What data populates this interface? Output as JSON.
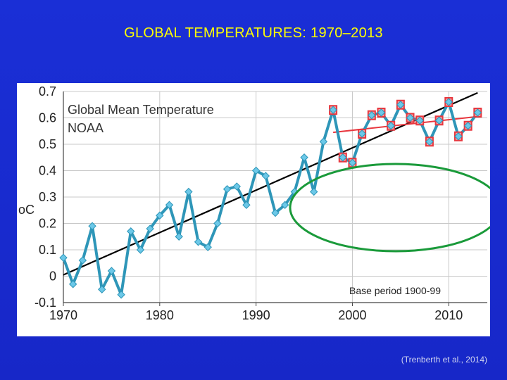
{
  "slide": {
    "title": "GLOBAL TEMPERATURES:  1970–2013",
    "citation": "(Trenberth et al., 2014)"
  },
  "chart_data": {
    "type": "line",
    "title": "Global Mean Temperature",
    "subtitle": "NOAA",
    "ylabel": "oC",
    "annotation": "Base period 1900-99",
    "xlim": [
      1970,
      2014
    ],
    "ylim": [
      -0.1,
      0.7
    ],
    "x_ticks": [
      "1970",
      "1980",
      "1990",
      "2000",
      "2010"
    ],
    "y_ticks": [
      "0.7",
      "0.6",
      "0.5",
      "0.4",
      "0.3",
      "0.2",
      "0.1",
      "0",
      "-0.1"
    ],
    "grid": true,
    "colors": {
      "series": "#2e96b8",
      "marker": "#6cc8e8",
      "trend_long": "#000000",
      "trend_recent": "#e8373e",
      "highlight_box": "#e8373e",
      "ellipse": "#1a9a3a"
    },
    "series": [
      {
        "name": "",
        "x": [
          1970,
          1971,
          1972,
          1973,
          1974,
          1975,
          1976,
          1977,
          1978,
          1979,
          1980,
          1981,
          1982,
          1983,
          1984,
          1985,
          1986,
          1987,
          1988,
          1989,
          1990,
          1991,
          1992,
          1993,
          1994,
          1995,
          1996,
          1997,
          1998,
          1999,
          2000,
          2001,
          2002,
          2003,
          2004,
          2005,
          2006,
          2007,
          2008,
          2009,
          2010,
          2011,
          2012,
          2013
        ],
        "values": [
          0.07,
          -0.03,
          0.06,
          0.19,
          -0.05,
          0.02,
          -0.07,
          0.17,
          0.1,
          0.18,
          0.23,
          0.27,
          0.15,
          0.32,
          0.13,
          0.11,
          0.2,
          0.33,
          0.34,
          0.27,
          0.4,
          0.38,
          0.24,
          0.27,
          0.32,
          0.45,
          0.32,
          0.51,
          0.63,
          0.45,
          0.43,
          0.54,
          0.61,
          0.62,
          0.57,
          0.65,
          0.6,
          0.59,
          0.51,
          0.59,
          0.66,
          0.53,
          0.57,
          0.62
        ]
      }
    ],
    "highlighted_years": [
      1998,
      1999,
      2000,
      2001,
      2002,
      2003,
      2004,
      2005,
      2006,
      2007,
      2008,
      2009,
      2010,
      2011,
      2012,
      2013
    ],
    "trend_long": {
      "x": [
        1970,
        2013
      ],
      "y": [
        0.005,
        0.695
      ]
    },
    "trend_recent": {
      "x": [
        1998,
        2013
      ],
      "y": [
        0.545,
        0.605
      ]
    }
  }
}
